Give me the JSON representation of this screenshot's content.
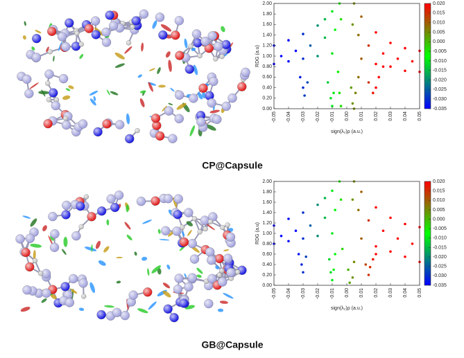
{
  "captions": [
    "CP@Capsule",
    "GB@Capsule"
  ],
  "chart_data": [
    {
      "type": "scatter",
      "xlabel": "sign(λ₂)ρ (a.u.)",
      "ylabel": "RDG (a.u)",
      "xlim": [
        -0.05,
        0.05
      ],
      "ylim": [
        0,
        2
      ],
      "xticks": [
        -0.05,
        -0.04,
        -0.03,
        -0.02,
        -0.01,
        {
          "value": 0,
          "label": "0.00"
        },
        0.01,
        0.02,
        0.03,
        0.04,
        0.05
      ],
      "yticks": [
        {
          "value": 0,
          "label": "0.00"
        },
        {
          "value": 0.2,
          "label": "0.20"
        },
        {
          "value": 0.4,
          "label": "0.40"
        },
        {
          "value": 0.6,
          "label": "0.60"
        },
        {
          "value": 0.8,
          "label": "0.80"
        },
        {
          "value": 1,
          "label": "1.00"
        },
        {
          "value": 1.2,
          "label": "1.20"
        },
        {
          "value": 1.4,
          "label": "1.40"
        },
        {
          "value": 1.6,
          "label": "1.60"
        },
        {
          "value": 1.8,
          "label": "1.80"
        },
        {
          "value": 2,
          "label": "2.00"
        }
      ],
      "colorbar": {
        "lim": [
          -0.035,
          0.02
        ],
        "colors": [
          "#0000ff",
          "#00ff00",
          "#ff0000"
        ],
        "ticks": [
          {
            "value": -0.035,
            "label": "-0.035"
          },
          {
            "value": -0.03,
            "label": "-0.030"
          },
          {
            "value": -0.025,
            "label": "-0.025"
          },
          {
            "value": -0.02,
            "label": "-0.020"
          },
          {
            "value": -0.015,
            "label": "-0.015"
          },
          {
            "value": -0.01,
            "label": "-0.010"
          },
          {
            "value": -0.005,
            "label": "-0.005"
          },
          {
            "value": 0,
            "label": "0.000"
          },
          {
            "value": 0.005,
            "label": "0.005"
          },
          {
            "value": 0.01,
            "label": "0.010"
          },
          {
            "value": 0.015,
            "label": "0.015"
          },
          {
            "value": 0.02,
            "label": "0.020"
          }
        ]
      },
      "x": [
        -0.05,
        -0.04,
        -0.03,
        -0.02,
        -0.015,
        -0.01,
        -0.005,
        0.005,
        0.01,
        0.02,
        0.03,
        0.04,
        0.05,
        -0.05,
        -0.04,
        -0.03,
        -0.02,
        -0.01,
        0.01,
        0.02,
        0.03,
        0.04,
        0.05,
        -0.045,
        -0.035,
        -0.025,
        -0.015,
        -0.008,
        -0.004,
        0.004,
        0.008,
        0.015,
        0.025,
        0.035,
        0.045,
        -0.032,
        -0.03,
        -0.029,
        -0.027,
        -0.013,
        -0.011,
        -0.01,
        -0.009,
        -0.006,
        -0.005,
        -0.004,
        0.003,
        0.004,
        0.005,
        0.006,
        0.008,
        0.015,
        0.018,
        0.02,
        0.022,
        0.025
      ],
      "values": [
        1.2,
        1.3,
        1.42,
        1.58,
        1.7,
        1.85,
        2,
        2,
        1.75,
        1.45,
        1.25,
        1.15,
        1.1,
        0.85,
        0.9,
        0.95,
        1,
        1.05,
        0.95,
        0.85,
        0.8,
        0.72,
        0.7,
        1,
        1.1,
        1.2,
        1.35,
        1.5,
        1.7,
        1.6,
        1.4,
        1.2,
        1.05,
        0.95,
        0.9,
        0.6,
        0.4,
        0.25,
        0.5,
        0.5,
        0.2,
        0.05,
        0.3,
        0.7,
        0.3,
        0.05,
        0.4,
        0.1,
        0,
        0.3,
        0.6,
        0.5,
        0.3,
        0.4,
        0.6,
        0.8
      ]
    },
    {
      "type": "scatter",
      "xlabel": "sign(λ₂)ρ (a.u.)",
      "ylabel": "RDG (a.u)",
      "xlim": [
        -0.05,
        0.05
      ],
      "ylim": [
        0,
        2
      ],
      "xticks": [
        -0.05,
        -0.04,
        -0.03,
        -0.02,
        -0.01,
        {
          "value": 0,
          "label": "0.00"
        },
        0.01,
        0.02,
        0.03,
        0.04,
        0.05
      ],
      "yticks": [
        {
          "value": 0,
          "label": "0.00"
        },
        {
          "value": 0.2,
          "label": "0.20"
        },
        {
          "value": 0.4,
          "label": "0.40"
        },
        {
          "value": 0.6,
          "label": "0.60"
        },
        {
          "value": 0.8,
          "label": "0.80"
        },
        {
          "value": 1,
          "label": "1.00"
        },
        {
          "value": 1.2,
          "label": "1.20"
        },
        {
          "value": 1.4,
          "label": "1.40"
        },
        {
          "value": 1.6,
          "label": "1.60"
        },
        {
          "value": 1.8,
          "label": "1.80"
        },
        {
          "value": 2,
          "label": "2.00"
        }
      ],
      "colorbar": {
        "lim": [
          -0.035,
          0.02
        ],
        "colors": [
          "#0000ff",
          "#00ff00",
          "#ff0000"
        ],
        "ticks": [
          {
            "value": -0.035,
            "label": "-0.035"
          },
          {
            "value": -0.03,
            "label": "-0.030"
          },
          {
            "value": -0.025,
            "label": "-0.025"
          },
          {
            "value": -0.02,
            "label": "-0.020"
          },
          {
            "value": -0.015,
            "label": "-0.015"
          },
          {
            "value": -0.01,
            "label": "-0.010"
          },
          {
            "value": -0.005,
            "label": "-0.005"
          },
          {
            "value": 0,
            "label": "0.000"
          },
          {
            "value": 0.005,
            "label": "0.005"
          },
          {
            "value": 0.01,
            "label": "0.010"
          },
          {
            "value": 0.015,
            "label": "0.015"
          },
          {
            "value": 0.02,
            "label": "0.020"
          }
        ]
      },
      "x": [
        -0.05,
        -0.04,
        -0.03,
        -0.02,
        -0.015,
        -0.01,
        -0.005,
        0.005,
        0.01,
        0.02,
        0.03,
        0.04,
        0.05,
        -0.05,
        -0.04,
        -0.03,
        -0.02,
        -0.01,
        0.01,
        0.02,
        0.03,
        0.04,
        0.05,
        -0.045,
        -0.035,
        -0.025,
        -0.015,
        -0.008,
        -0.004,
        0.004,
        0.008,
        0.015,
        0.025,
        0.035,
        0.045,
        -0.033,
        -0.031,
        -0.03,
        -0.028,
        -0.012,
        -0.011,
        -0.01,
        -0.009,
        -0.008,
        -0.003,
        0.001,
        0.002,
        0.004,
        0.005,
        0.013,
        0.015,
        0.016,
        0.018,
        0.02
      ],
      "values": [
        1.15,
        1.28,
        1.4,
        1.55,
        1.68,
        1.82,
        2,
        2,
        1.8,
        1.5,
        1.3,
        1.18,
        1.12,
        0.8,
        0.85,
        0.9,
        0.95,
        1,
        0.9,
        0.75,
        0.65,
        0.55,
        0.45,
        0.95,
        1.05,
        1.15,
        1.3,
        1.45,
        1.65,
        1.65,
        1.45,
        1.25,
        1.05,
        0.9,
        0.8,
        0.6,
        0.4,
        0.25,
        0.55,
        0.5,
        0.25,
        0.1,
        0.3,
        0.6,
        0.7,
        0.3,
        0.05,
        0.15,
        0.45,
        0.4,
        0.2,
        0.35,
        0.5,
        0.6
      ]
    }
  ]
}
